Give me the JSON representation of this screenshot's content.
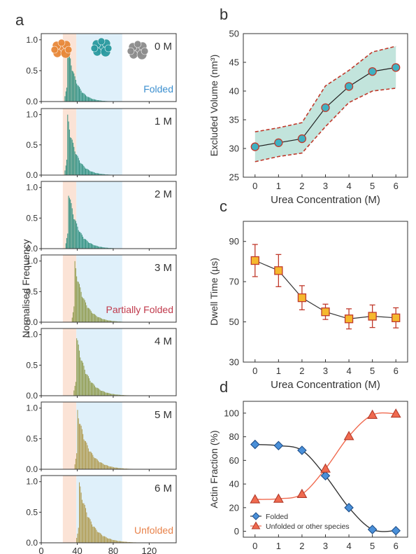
{
  "panel_letters": {
    "a": "a",
    "b": "b",
    "c": "c",
    "d": "d"
  },
  "colors": {
    "folded_band": "#dff0fa",
    "partial_band": "#fbe3d6",
    "hist_teal": "#2e8f7e",
    "hist_olive": "#8f9a4c",
    "hist_tan": "#b09a4e",
    "folded_text": "#3b8fcf",
    "partial_text": "#c0394b",
    "unfolded_text": "#e8824a",
    "b_marker": "#3fb1c2",
    "b_band": "#8fcdc0",
    "b_dash": "#c0392b",
    "c_marker": "#f5b82e",
    "c_edge": "#c0392b",
    "d_folded": "#4a90d9",
    "d_unfolded": "#f06a4f",
    "protein_orange": "#e8893a",
    "protein_teal": "#2a9aa0",
    "protein_grey": "#8c8c8c"
  },
  "icons": [
    "folded-protein-icon",
    "intermediate-protein-icon",
    "unfolded-protein-icon"
  ],
  "chart_data": [
    {
      "type": "bar",
      "panel": "a",
      "ylabel": "Normalised Frequency",
      "xticks": [
        "0",
        "40",
        "80",
        "120"
      ],
      "xlim": [
        0,
        150
      ],
      "yticks": [
        "0.0",
        "0.5",
        "1.0"
      ],
      "ylim": [
        0,
        1.1
      ],
      "shaded_regions": [
        {
          "name": "partially folded band",
          "range": [
            24,
            39
          ]
        },
        {
          "name": "folded band",
          "range": [
            39,
            90
          ]
        }
      ],
      "series": [
        {
          "name": "0 M",
          "peak_x": 29,
          "annotation": "Folded"
        },
        {
          "name": "1 M",
          "peak_x": 29
        },
        {
          "name": "2 M",
          "peak_x": 30
        },
        {
          "name": "3 M",
          "peak_x": 37,
          "annotation": "Partially Folded"
        },
        {
          "name": "4 M",
          "peak_x": 39
        },
        {
          "name": "5 M",
          "peak_x": 40
        },
        {
          "name": "6 M",
          "peak_x": 42,
          "annotation": "Unfolded"
        }
      ]
    },
    {
      "type": "line",
      "panel": "b",
      "xlabel": "Urea Concentration (M)",
      "ylabel": "Excluded Volume (nm³)",
      "x": [
        0,
        1,
        2,
        3,
        4,
        5,
        6
      ],
      "y": [
        30.3,
        31.0,
        31.7,
        37.1,
        40.8,
        43.4,
        44.1
      ],
      "upper": [
        32.9,
        33.6,
        34.5,
        40.9,
        43.6,
        46.8,
        47.8
      ],
      "lower": [
        27.7,
        28.6,
        29.2,
        33.8,
        38.0,
        40.0,
        40.5
      ],
      "xticks": [
        "0",
        "1",
        "2",
        "3",
        "4",
        "5",
        "6"
      ],
      "yticks": [
        "25",
        "30",
        "35",
        "40",
        "45",
        "50"
      ],
      "xlim": [
        -0.5,
        6.5
      ],
      "ylim": [
        25,
        50
      ]
    },
    {
      "type": "line",
      "panel": "c",
      "xlabel": "Urea Concentration (M)",
      "ylabel": "Dwell Time (µs)",
      "x": [
        0,
        1,
        2,
        3,
        4,
        5,
        6
      ],
      "y": [
        80.5,
        75.5,
        62.0,
        55.0,
        51.5,
        52.8,
        52.0
      ],
      "err": [
        8.0,
        8.0,
        6.0,
        3.8,
        5.0,
        5.6,
        5.0
      ],
      "xticks": [
        "0",
        "1",
        "2",
        "3",
        "4",
        "5",
        "6"
      ],
      "yticks": [
        "30",
        "50",
        "70",
        "90"
      ],
      "xlim": [
        -0.5,
        6.5
      ],
      "ylim": [
        30,
        100
      ]
    },
    {
      "type": "line",
      "panel": "d",
      "ylabel": "Actin Fraction (%)",
      "x": [
        0,
        1,
        2,
        3,
        4,
        5,
        6
      ],
      "xticks": [
        "0",
        "1",
        "2",
        "3",
        "4",
        "5",
        "6"
      ],
      "yticks": [
        "0",
        "20",
        "40",
        "60",
        "80",
        "100"
      ],
      "xlim": [
        -0.5,
        6.5
      ],
      "ylim": [
        -5,
        110
      ],
      "legend_position": "bottom-left",
      "series": [
        {
          "name": "Folded",
          "values": [
            73.5,
            72.5,
            68.5,
            47.0,
            20.0,
            1.5,
            0.5
          ]
        },
        {
          "name": "Unfolded or other species",
          "values": [
            27.0,
            27.5,
            31.5,
            53.0,
            80.5,
            98.5,
            99.5
          ]
        }
      ]
    }
  ]
}
